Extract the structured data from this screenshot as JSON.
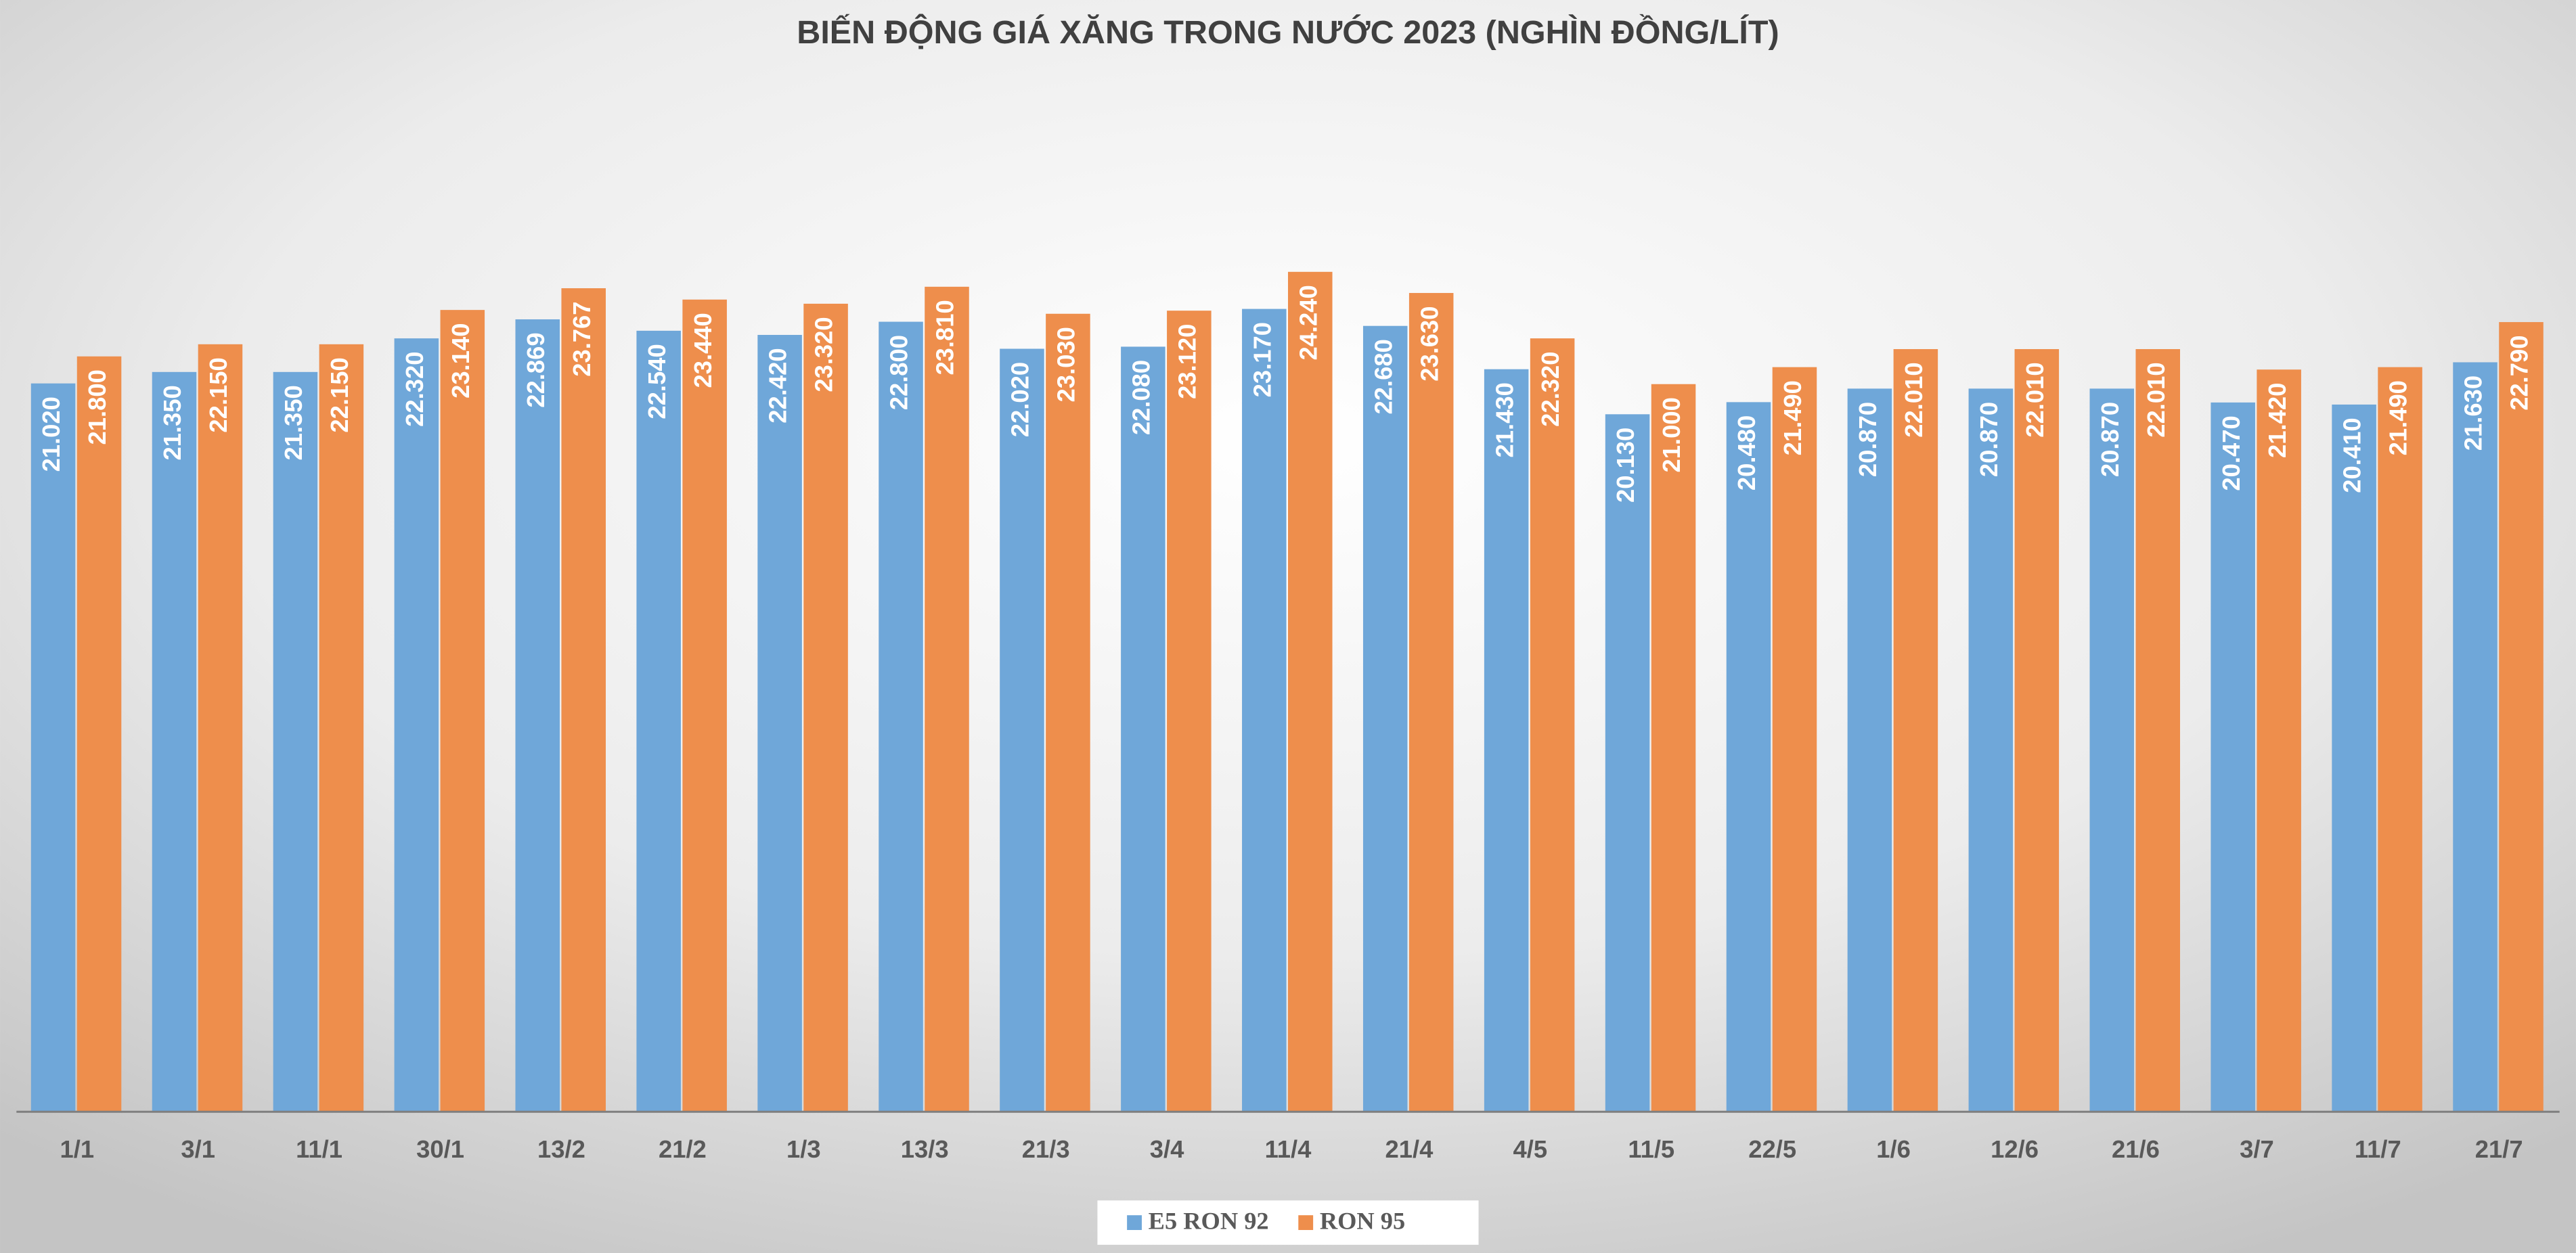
{
  "chart_data": {
    "type": "bar",
    "title": "BIẾN ĐỘNG GIÁ XĂNG TRONG NƯỚC 2023 (NGHÌN ĐỒNG/LÍT)",
    "categories": [
      "1/1",
      "3/1",
      "11/1",
      "30/1",
      "13/2",
      "21/2",
      "1/3",
      "13/3",
      "21/3",
      "3/4",
      "11/4",
      "21/4",
      "4/5",
      "11/5",
      "22/5",
      "1/6",
      "12/6",
      "21/6",
      "3/7",
      "11/7",
      "21/7"
    ],
    "series": [
      {
        "name": "E5 RON 92",
        "color": "#6fa7d9",
        "values": [
          21.02,
          21.35,
          21.35,
          22.32,
          22.869,
          22.54,
          22.42,
          22.8,
          22.02,
          22.08,
          23.17,
          22.68,
          21.43,
          20.13,
          20.48,
          20.87,
          20.87,
          20.87,
          20.47,
          20.41,
          21.63
        ],
        "value_labels": [
          "21.020",
          "21.350",
          "21.350",
          "22.320",
          "22.869",
          "22.540",
          "22.420",
          "22.800",
          "22.020",
          "22.080",
          "23.170",
          "22.680",
          "21.430",
          "20.130",
          "20.480",
          "20.870",
          "20.870",
          "20.870",
          "20.470",
          "20.410",
          "21.630"
        ]
      },
      {
        "name": "RON 95",
        "color": "#ee8e4c",
        "values": [
          21.8,
          22.15,
          22.15,
          23.14,
          23.767,
          23.44,
          23.32,
          23.81,
          23.03,
          23.12,
          24.24,
          23.63,
          22.32,
          21.0,
          21.49,
          22.01,
          22.01,
          22.01,
          21.42,
          21.49,
          22.79
        ],
        "value_labels": [
          "21.800",
          "22.150",
          "22.150",
          "23.140",
          "23.767",
          "23.440",
          "23.320",
          "23.810",
          "23.030",
          "23.120",
          "24.240",
          "23.630",
          "22.320",
          "21.000",
          "21.490",
          "22.010",
          "22.010",
          "22.010",
          "21.420",
          "21.490",
          "22.790"
        ]
      }
    ],
    "ylim": [
      0,
      30
    ],
    "legend": "bottom"
  }
}
